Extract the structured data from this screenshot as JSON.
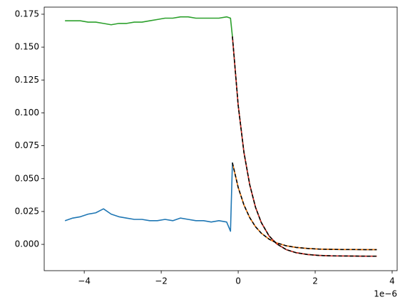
{
  "chart_data": {
    "type": "line",
    "x_offset_label": "1e−6",
    "xlim": [
      -5.04,
      4.13
    ],
    "ylim": [
      -0.02,
      0.1804
    ],
    "xticks": [
      {
        "value": -4,
        "label": "−4"
      },
      {
        "value": -2,
        "label": "−2"
      },
      0,
      2,
      4
    ],
    "yticks": [
      {
        "value": 0,
        "label": "0.000"
      },
      0.025,
      {
        "value": 0.05,
        "label": "0.050"
      },
      0.075,
      {
        "value": 0.1,
        "label": "0.100"
      },
      0.125,
      {
        "value": 0.15,
        "label": "0.150"
      },
      0.175
    ],
    "series": [
      {
        "color": "#1f77b4",
        "style": "solid",
        "x": [
          -4.5,
          -4.3,
          -4.1,
          -3.9,
          -3.7,
          -3.5,
          -3.3,
          -3.1,
          -2.9,
          -2.7,
          -2.5,
          -2.3,
          -2.1,
          -1.9,
          -1.7,
          -1.5,
          -1.3,
          -1.1,
          -0.9,
          -0.7,
          -0.5,
          -0.3,
          -0.2,
          -0.15,
          0,
          0.15,
          0.3,
          0.45,
          0.6,
          0.8,
          1.0,
          1.25,
          1.5,
          1.8,
          2.1,
          2.4,
          2.7,
          3.0,
          3.3,
          3.6
        ],
        "values": [
          0.018,
          0.02,
          0.021,
          0.023,
          0.024,
          0.027,
          0.023,
          0.021,
          0.02,
          0.019,
          0.019,
          0.018,
          0.018,
          0.019,
          0.018,
          0.02,
          0.019,
          0.018,
          0.018,
          0.017,
          0.018,
          0.017,
          0.01,
          0.062,
          0.0433,
          0.0299,
          0.0203,
          0.0134,
          0.0085,
          0.004,
          0.0011,
          -0.0011,
          -0.0023,
          -0.0031,
          -0.0036,
          -0.0038,
          -0.0039,
          -0.0039,
          -0.004,
          -0.004
        ]
      },
      {
        "color": "#2ca02c",
        "style": "solid",
        "x": [
          -4.5,
          -4.3,
          -4.1,
          -3.9,
          -3.7,
          -3.5,
          -3.3,
          -3.1,
          -2.9,
          -2.7,
          -2.5,
          -2.3,
          -2.1,
          -1.9,
          -1.7,
          -1.5,
          -1.3,
          -1.1,
          -0.9,
          -0.7,
          -0.5,
          -0.3,
          -0.2,
          -0.15,
          0,
          0.15,
          0.3,
          0.45,
          0.6,
          0.8,
          1.0,
          1.25,
          1.5,
          1.8,
          2.1,
          2.4,
          2.7,
          3.0,
          3.3,
          3.6
        ],
        "values": [
          0.17,
          0.17,
          0.17,
          0.169,
          0.169,
          0.168,
          0.167,
          0.168,
          0.168,
          0.169,
          0.169,
          0.17,
          0.171,
          0.172,
          0.172,
          0.173,
          0.173,
          0.172,
          0.172,
          0.172,
          0.172,
          0.173,
          0.172,
          0.158,
          0.1057,
          0.0698,
          0.0453,
          0.0282,
          0.0166,
          0.0065,
          0.0004,
          -0.004,
          -0.0063,
          -0.0077,
          -0.0084,
          -0.0087,
          -0.0088,
          -0.0089,
          -0.009,
          -0.009
        ]
      },
      {
        "color": "#ff7f0e",
        "style": "solid",
        "x": [
          -0.15,
          0,
          0.15,
          0.3,
          0.45,
          0.6,
          0.8,
          1.0,
          1.25,
          1.5,
          1.8,
          2.1,
          2.4,
          2.7,
          3.0,
          3.3,
          3.6
        ],
        "values": [
          0.062,
          0.0433,
          0.0299,
          0.0203,
          0.0134,
          0.0085,
          0.004,
          0.0011,
          -0.0011,
          -0.0023,
          -0.0031,
          -0.0036,
          -0.0038,
          -0.0039,
          -0.0039,
          -0.004,
          -0.004
        ]
      },
      {
        "color": "#d62728",
        "style": "solid",
        "x": [
          -0.15,
          0,
          0.15,
          0.3,
          0.45,
          0.6,
          0.8,
          1.0,
          1.25,
          1.5,
          1.8,
          2.1,
          2.4,
          2.7,
          3.0,
          3.3,
          3.6
        ],
        "values": [
          0.158,
          0.1057,
          0.0698,
          0.0453,
          0.0282,
          0.0166,
          0.0065,
          0.0004,
          -0.004,
          -0.0063,
          -0.0077,
          -0.0084,
          -0.0087,
          -0.0088,
          -0.0089,
          -0.009,
          -0.009
        ]
      },
      {
        "color": "#000000",
        "style": "dashed",
        "x": [
          -0.15,
          0,
          0.15,
          0.3,
          0.45,
          0.6,
          0.8,
          1.0,
          1.25,
          1.5,
          1.8,
          2.1,
          2.4,
          2.7,
          3.0,
          3.3,
          3.6
        ],
        "values": [
          0.062,
          0.0433,
          0.0299,
          0.0203,
          0.0134,
          0.0085,
          0.004,
          0.0011,
          -0.0011,
          -0.0023,
          -0.0031,
          -0.0036,
          -0.0038,
          -0.0039,
          -0.0039,
          -0.004,
          -0.004
        ]
      },
      {
        "color": "#000000",
        "style": "dashed",
        "x": [
          -0.15,
          0,
          0.15,
          0.3,
          0.45,
          0.6,
          0.8,
          1.0,
          1.25,
          1.5,
          1.8,
          2.1,
          2.4,
          2.7,
          3.0,
          3.3,
          3.6
        ],
        "values": [
          0.158,
          0.1057,
          0.0698,
          0.0453,
          0.0282,
          0.0166,
          0.0065,
          0.0004,
          -0.004,
          -0.0063,
          -0.0077,
          -0.0084,
          -0.0087,
          -0.0088,
          -0.0089,
          -0.009,
          -0.009
        ]
      }
    ]
  }
}
